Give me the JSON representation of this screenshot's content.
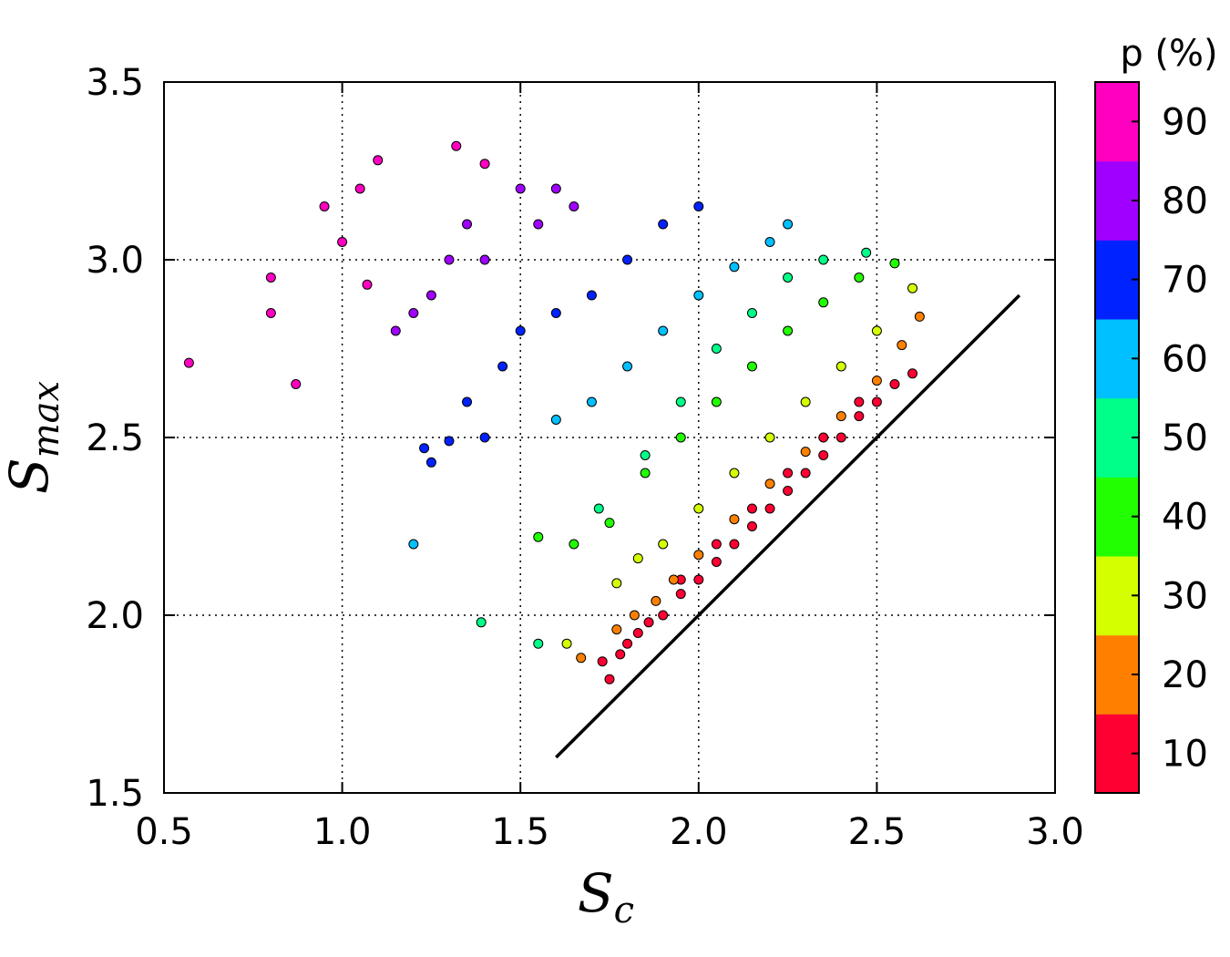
{
  "chart_data": {
    "type": "scatter",
    "xlabel": "S",
    "xlabel_sub": "c",
    "ylabel": "S",
    "ylabel_sub": "max",
    "xlim": [
      0.5,
      3.0
    ],
    "ylim": [
      1.5,
      3.5
    ],
    "xticks": [
      "0.5",
      "1.0",
      "1.5",
      "2.0",
      "2.5",
      "3.0"
    ],
    "yticks": [
      "1.5",
      "2.0",
      "2.5",
      "3.0",
      "3.5"
    ],
    "grid": true,
    "reference_line": {
      "x": [
        1.6,
        2.9
      ],
      "y": [
        1.6,
        2.9
      ]
    },
    "colorbar": {
      "title": "p (%)",
      "labels": [
        "10",
        "20",
        "30",
        "40",
        "50",
        "60",
        "70",
        "80",
        "90"
      ],
      "colors": [
        "#ff0033",
        "#ff8000",
        "#d4ff00",
        "#22ff00",
        "#00ff88",
        "#00c0ff",
        "#0022ff",
        "#a000ff",
        "#ff00c0"
      ]
    },
    "series": [
      {
        "p": 10,
        "color": "#ff0033",
        "points": [
          [
            1.73,
            1.87
          ],
          [
            1.75,
            1.82
          ],
          [
            1.78,
            1.89
          ],
          [
            1.8,
            1.92
          ],
          [
            1.83,
            1.95
          ],
          [
            1.86,
            1.98
          ],
          [
            1.9,
            2.0
          ],
          [
            1.95,
            2.06
          ],
          [
            2.0,
            2.1
          ],
          [
            2.05,
            2.15
          ],
          [
            2.1,
            2.2
          ],
          [
            2.15,
            2.25
          ],
          [
            2.2,
            2.3
          ],
          [
            2.25,
            2.35
          ],
          [
            2.3,
            2.4
          ],
          [
            2.35,
            2.45
          ],
          [
            2.4,
            2.5
          ],
          [
            2.45,
            2.56
          ],
          [
            2.5,
            2.6
          ],
          [
            2.55,
            2.65
          ],
          [
            2.6,
            2.68
          ],
          [
            1.95,
            2.1
          ],
          [
            2.05,
            2.2
          ],
          [
            2.15,
            2.3
          ],
          [
            2.25,
            2.4
          ],
          [
            2.35,
            2.5
          ],
          [
            2.45,
            2.6
          ]
        ]
      },
      {
        "p": 20,
        "color": "#ff8000",
        "points": [
          [
            1.67,
            1.88
          ],
          [
            1.77,
            1.96
          ],
          [
            1.82,
            2.0
          ],
          [
            1.88,
            2.04
          ],
          [
            1.93,
            2.1
          ],
          [
            2.0,
            2.17
          ],
          [
            2.1,
            2.27
          ],
          [
            2.2,
            2.37
          ],
          [
            2.3,
            2.46
          ],
          [
            2.4,
            2.56
          ],
          [
            2.5,
            2.66
          ],
          [
            2.57,
            2.76
          ],
          [
            2.62,
            2.84
          ]
        ]
      },
      {
        "p": 30,
        "color": "#d4ff00",
        "points": [
          [
            1.63,
            1.92
          ],
          [
            1.77,
            2.09
          ],
          [
            1.83,
            2.16
          ],
          [
            1.9,
            2.2
          ],
          [
            2.0,
            2.3
          ],
          [
            2.1,
            2.4
          ],
          [
            2.2,
            2.5
          ],
          [
            2.3,
            2.6
          ],
          [
            2.4,
            2.7
          ],
          [
            2.5,
            2.8
          ],
          [
            2.6,
            2.92
          ]
        ]
      },
      {
        "p": 40,
        "color": "#22ff00",
        "points": [
          [
            1.55,
            2.22
          ],
          [
            1.65,
            2.2
          ],
          [
            1.75,
            2.26
          ],
          [
            1.85,
            2.4
          ],
          [
            1.95,
            2.5
          ],
          [
            2.05,
            2.6
          ],
          [
            2.15,
            2.7
          ],
          [
            2.25,
            2.8
          ],
          [
            2.35,
            2.88
          ],
          [
            2.45,
            2.95
          ],
          [
            2.55,
            2.99
          ]
        ]
      },
      {
        "p": 50,
        "color": "#00ff88",
        "points": [
          [
            1.39,
            1.98
          ],
          [
            1.55,
            1.92
          ],
          [
            1.72,
            2.3
          ],
          [
            1.85,
            2.45
          ],
          [
            1.95,
            2.6
          ],
          [
            2.05,
            2.75
          ],
          [
            2.15,
            2.85
          ],
          [
            2.25,
            2.95
          ],
          [
            2.35,
            3.0
          ],
          [
            2.47,
            3.02
          ]
        ]
      },
      {
        "p": 60,
        "color": "#00c0ff",
        "points": [
          [
            1.2,
            2.2
          ],
          [
            1.6,
            2.55
          ],
          [
            1.7,
            2.6
          ],
          [
            1.8,
            2.7
          ],
          [
            1.9,
            2.8
          ],
          [
            2.0,
            2.9
          ],
          [
            2.1,
            2.98
          ],
          [
            2.2,
            3.05
          ],
          [
            2.25,
            3.1
          ]
        ]
      },
      {
        "p": 70,
        "color": "#0022ff",
        "points": [
          [
            1.23,
            2.47
          ],
          [
            1.25,
            2.43
          ],
          [
            1.3,
            2.49
          ],
          [
            1.35,
            2.6
          ],
          [
            1.4,
            2.5
          ],
          [
            1.45,
            2.7
          ],
          [
            1.5,
            2.8
          ],
          [
            1.6,
            2.85
          ],
          [
            1.7,
            2.9
          ],
          [
            1.8,
            3.0
          ],
          [
            1.9,
            3.1
          ],
          [
            2.0,
            3.15
          ]
        ]
      },
      {
        "p": 80,
        "color": "#a000ff",
        "points": [
          [
            1.15,
            2.8
          ],
          [
            1.2,
            2.85
          ],
          [
            1.25,
            2.9
          ],
          [
            1.3,
            3.0
          ],
          [
            1.35,
            3.1
          ],
          [
            1.4,
            3.0
          ],
          [
            1.5,
            3.2
          ],
          [
            1.55,
            3.1
          ],
          [
            1.6,
            3.2
          ],
          [
            1.65,
            3.15
          ]
        ]
      },
      {
        "p": 90,
        "color": "#ff00c0",
        "points": [
          [
            0.57,
            2.71
          ],
          [
            0.8,
            2.95
          ],
          [
            0.8,
            2.85
          ],
          [
            0.87,
            2.65
          ],
          [
            0.95,
            3.15
          ],
          [
            1.0,
            3.05
          ],
          [
            1.05,
            3.2
          ],
          [
            1.07,
            2.93
          ],
          [
            1.1,
            3.28
          ],
          [
            1.32,
            3.32
          ],
          [
            1.4,
            3.27
          ]
        ]
      }
    ]
  }
}
